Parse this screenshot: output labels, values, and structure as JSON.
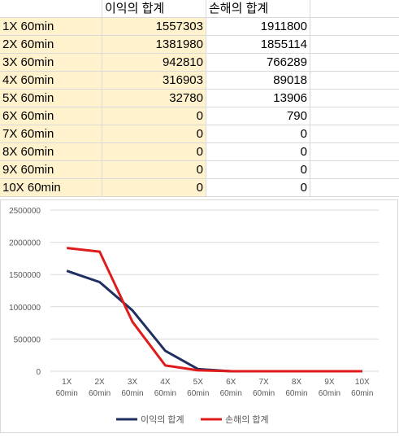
{
  "sheet": {
    "headers": [
      "",
      "이익의 합계",
      "손해의 합계"
    ],
    "rows": [
      {
        "label": "1X 60min",
        "profit": "1557303",
        "loss": "1911800"
      },
      {
        "label": "2X 60min",
        "profit": "1381980",
        "loss": "1855114"
      },
      {
        "label": "3X 60min",
        "profit": "942810",
        "loss": "766289"
      },
      {
        "label": "4X 60min",
        "profit": "316903",
        "loss": "89018"
      },
      {
        "label": "5X 60min",
        "profit": "32780",
        "loss": "13906"
      },
      {
        "label": "6X 60min",
        "profit": "0",
        "loss": "790"
      },
      {
        "label": "7X 60min",
        "profit": "0",
        "loss": "0"
      },
      {
        "label": "8X 60min",
        "profit": "0",
        "loss": "0"
      },
      {
        "label": "9X 60min",
        "profit": "0",
        "loss": "0"
      },
      {
        "label": "10X 60min",
        "profit": "0",
        "loss": "0"
      }
    ],
    "highlight_color": "#fff2cc"
  },
  "chart_data": {
    "type": "line",
    "categories": [
      [
        "1X",
        "60min"
      ],
      [
        "2X",
        "60min"
      ],
      [
        "3X",
        "60min"
      ],
      [
        "4X",
        "60min"
      ],
      [
        "5X",
        "60min"
      ],
      [
        "6X",
        "60min"
      ],
      [
        "7X",
        "60min"
      ],
      [
        "8X",
        "60min"
      ],
      [
        "9X",
        "60min"
      ],
      [
        "10X",
        "60min"
      ]
    ],
    "series": [
      {
        "name": "이익의 합계",
        "color": "#1f2f5f",
        "values": [
          1557303,
          1381980,
          942810,
          316903,
          32780,
          0,
          0,
          0,
          0,
          0
        ]
      },
      {
        "name": "손해의 합계",
        "color": "#e01b1b",
        "values": [
          1911800,
          1855114,
          766289,
          89018,
          13906,
          790,
          0,
          0,
          0,
          0
        ]
      }
    ],
    "yticks": [
      "0",
      "500000",
      "1000000",
      "1500000",
      "2000000",
      "2500000"
    ],
    "ylim": [
      0,
      2500000
    ],
    "grid": true,
    "legend": "bottom"
  }
}
